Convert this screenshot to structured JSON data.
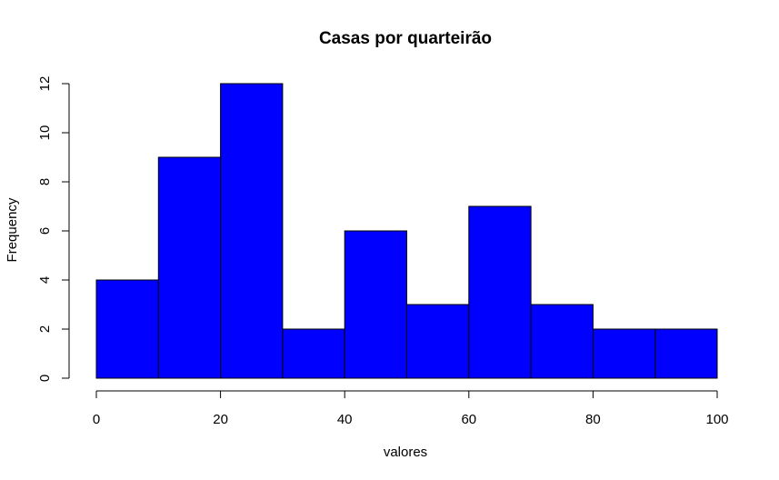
{
  "chart_data": {
    "type": "bar",
    "title": "Casas por quarteirão",
    "xlabel": "valores",
    "ylabel": "Frequency",
    "bins": [
      [
        0,
        10
      ],
      [
        10,
        20
      ],
      [
        20,
        30
      ],
      [
        30,
        40
      ],
      [
        40,
        50
      ],
      [
        50,
        60
      ],
      [
        60,
        70
      ],
      [
        70,
        80
      ],
      [
        80,
        90
      ],
      [
        90,
        100
      ]
    ],
    "values": [
      4,
      9,
      12,
      2,
      6,
      3,
      7,
      3,
      2,
      2
    ],
    "xlim": [
      0,
      100
    ],
    "ylim": [
      0,
      12
    ],
    "xticks": [
      0,
      20,
      40,
      60,
      80,
      100
    ],
    "yticks": [
      0,
      2,
      4,
      6,
      8,
      10,
      12
    ],
    "bar_color": "#0000ff",
    "grid": false
  }
}
